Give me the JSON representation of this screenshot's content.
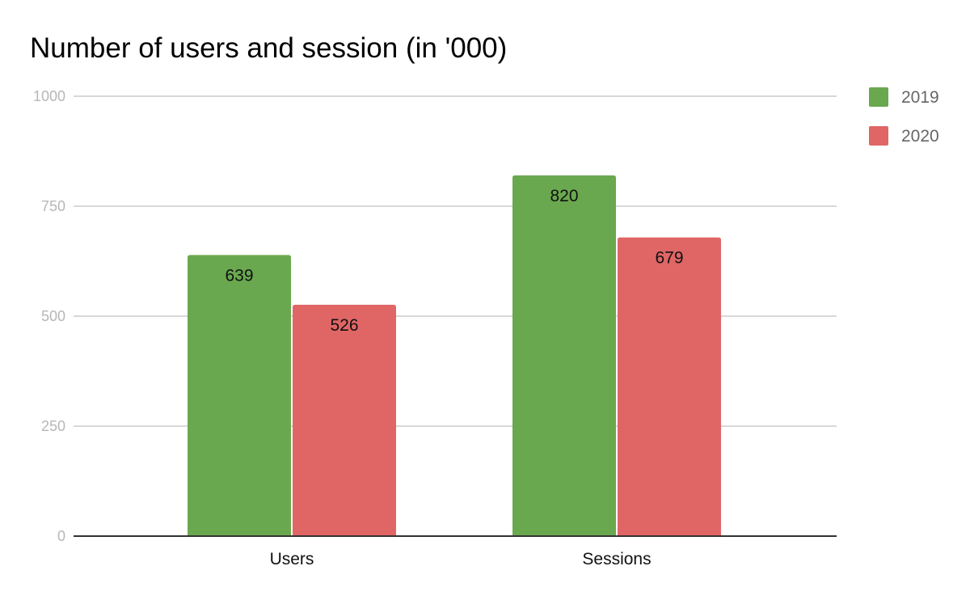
{
  "chart_data": {
    "type": "bar",
    "title": "Number of users and session (in '000)",
    "categories": [
      "Users",
      "Sessions"
    ],
    "series": [
      {
        "name": "2019",
        "values": [
          639,
          820
        ],
        "color": "#6aa84f"
      },
      {
        "name": "2020",
        "values": [
          526,
          679
        ],
        "color": "#e06666"
      }
    ],
    "ylim": [
      0,
      1000
    ],
    "yticks": [
      0,
      250,
      500,
      750,
      1000
    ],
    "ytick_labels": [
      "0",
      "250",
      "500",
      "750",
      "1000"
    ],
    "grid": true,
    "legend_position": "right",
    "data_labels": true
  }
}
